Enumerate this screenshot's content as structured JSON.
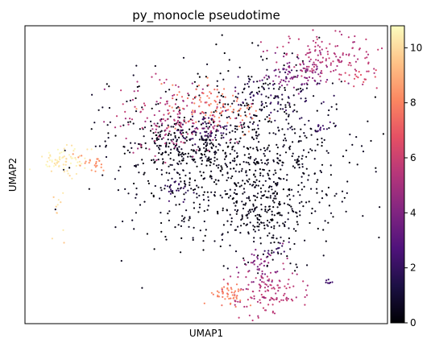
{
  "chart_data": {
    "type": "scatter",
    "title": "py_monocle pseudotime",
    "xlabel": "UMAP1",
    "ylabel": "UMAP2",
    "xticks": [],
    "yticks": [],
    "colorbar": {
      "colormap": "magma",
      "range": [
        0,
        10.8
      ],
      "ticks": [
        0,
        2,
        4,
        6,
        8,
        10
      ],
      "tick_labels": [
        "0",
        "2",
        "4",
        "6",
        "8",
        "10"
      ]
    },
    "grid": false,
    "clusters": [
      {
        "cluster": "central",
        "center": [
          0.58,
          0.46
        ],
        "spread": [
          0.17,
          0.14
        ],
        "share": 0.38,
        "pseudotime": [
          0.0,
          0.8
        ]
      },
      {
        "cluster": "central-left",
        "center": [
          0.43,
          0.41
        ],
        "spread": [
          0.06,
          0.05
        ],
        "share": 0.06,
        "pseudotime": [
          0.0,
          1.0
        ]
      },
      {
        "cluster": "central-lower",
        "center": [
          0.66,
          0.62
        ],
        "spread": [
          0.05,
          0.08
        ],
        "share": 0.06,
        "pseudotime": [
          0.0,
          0.7
        ]
      },
      {
        "cluster": "upper-middle",
        "center": [
          0.68,
          0.24
        ],
        "spread": [
          0.06,
          0.06
        ],
        "share": 0.05,
        "pseudotime": [
          0.0,
          2.5
        ]
      },
      {
        "cluster": "top-right",
        "center": [
          0.83,
          0.1
        ],
        "spread": [
          0.07,
          0.04
        ],
        "share": 0.06,
        "pseudotime": [
          5.0,
          6.0
        ]
      },
      {
        "cluster": "top-right-middle",
        "center": [
          0.75,
          0.17
        ],
        "spread": [
          0.05,
          0.03
        ],
        "share": 0.03,
        "pseudotime": [
          3.5,
          4.5
        ]
      },
      {
        "cluster": "far-right",
        "center": [
          0.94,
          0.17
        ],
        "spread": [
          0.04,
          0.015
        ],
        "share": 0.01,
        "pseudotime": [
          6.0,
          7.0
        ]
      },
      {
        "cluster": "upper-left",
        "center": [
          0.42,
          0.32
        ],
        "spread": [
          0.09,
          0.06
        ],
        "share": 0.07,
        "pseudotime": [
          4.5,
          6.0
        ]
      },
      {
        "cluster": "upper-left-dark",
        "center": [
          0.49,
          0.35
        ],
        "spread": [
          0.05,
          0.03
        ],
        "share": 0.02,
        "pseudotime": [
          1.5,
          2.5
        ]
      },
      {
        "cluster": "upper-left-top",
        "center": [
          0.5,
          0.26
        ],
        "spread": [
          0.06,
          0.04
        ],
        "share": 0.03,
        "pseudotime": [
          7.0,
          8.5
        ]
      },
      {
        "cluster": "upper-left-right",
        "center": [
          0.57,
          0.3
        ],
        "spread": [
          0.035,
          0.025
        ],
        "share": 0.01,
        "pseudotime": [
          7.5,
          8.5
        ]
      },
      {
        "cluster": "left-mid",
        "center": [
          0.41,
          0.55
        ],
        "spread": [
          0.02,
          0.02
        ],
        "share": 0.01,
        "pseudotime": [
          1.5,
          2.5
        ]
      },
      {
        "cluster": "right-small",
        "center": [
          0.82,
          0.34
        ],
        "spread": [
          0.02,
          0.01
        ],
        "share": 0.005,
        "pseudotime": [
          1.5,
          2.5
        ]
      },
      {
        "cluster": "far-left",
        "center": [
          0.1,
          0.45
        ],
        "spread": [
          0.04,
          0.02
        ],
        "share": 0.03,
        "pseudotime": [
          10.0,
          10.8
        ]
      },
      {
        "cluster": "far-left-mid",
        "center": [
          0.19,
          0.46
        ],
        "spread": [
          0.025,
          0.015
        ],
        "share": 0.01,
        "pseudotime": [
          8.0,
          8.6
        ]
      },
      {
        "cluster": "far-left-tail",
        "center": [
          0.1,
          0.63
        ],
        "spread": [
          0.015,
          0.05
        ],
        "share": 0.005,
        "pseudotime": [
          9.5,
          10.5
        ]
      },
      {
        "cluster": "bottom-right",
        "center": [
          0.67,
          0.9
        ],
        "spread": [
          0.05,
          0.04
        ],
        "share": 0.05,
        "pseudotime": [
          5.0,
          6.0
        ]
      },
      {
        "cluster": "bottom-right-upper",
        "center": [
          0.65,
          0.81
        ],
        "spread": [
          0.03,
          0.04
        ],
        "share": 0.02,
        "pseudotime": [
          3.5,
          5.0
        ]
      },
      {
        "cluster": "bottom-middle",
        "center": [
          0.56,
          0.9
        ],
        "spread": [
          0.03,
          0.02
        ],
        "share": 0.02,
        "pseudotime": [
          7.5,
          8.5
        ]
      },
      {
        "cluster": "bottom-small-dark",
        "center": [
          0.7,
          0.75
        ],
        "spread": [
          0.02,
          0.01
        ],
        "share": 0.005,
        "pseudotime": [
          1.5,
          2.5
        ]
      },
      {
        "cluster": "bottom-right-dot",
        "center": [
          0.84,
          0.86
        ],
        "spread": [
          0.005,
          0.004
        ],
        "share": 0.001,
        "pseudotime": [
          2.0,
          2.5
        ]
      }
    ]
  }
}
